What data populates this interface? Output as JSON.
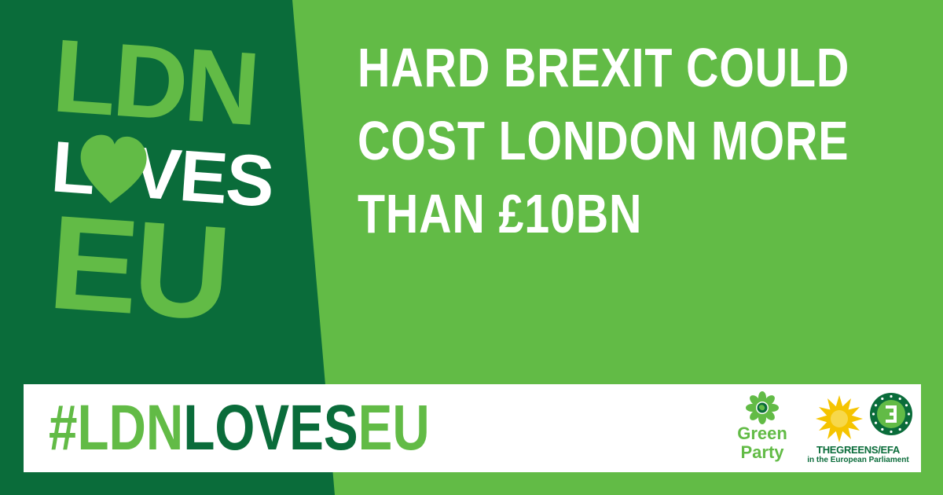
{
  "colors": {
    "background": "#62bb46",
    "dark_panel": "#0a6c3a",
    "light_green": "#62bb46",
    "white": "#ffffff",
    "sunflower": "#f5c400"
  },
  "logo": {
    "line1": "LDN",
    "line2_start": "L",
    "line2_end": "VES",
    "line3": "EU",
    "heart_icon": "heart-icon"
  },
  "headline": {
    "lines": [
      "HARD BREXIT COULD",
      "COST LONDON MORE",
      "THAN £10BN"
    ]
  },
  "banner": {
    "hashtag_light_1": "#LDN",
    "hashtag_dark": "LOVES",
    "hashtag_light_2": "EU"
  },
  "green_party": {
    "icon": "green-party-flower-icon",
    "line1": "Green",
    "line2": "Party"
  },
  "greens_efa": {
    "icon": "sunflower-icon",
    "name": "THEGREENS/EFA",
    "subtitle": "in the European Parliament"
  }
}
